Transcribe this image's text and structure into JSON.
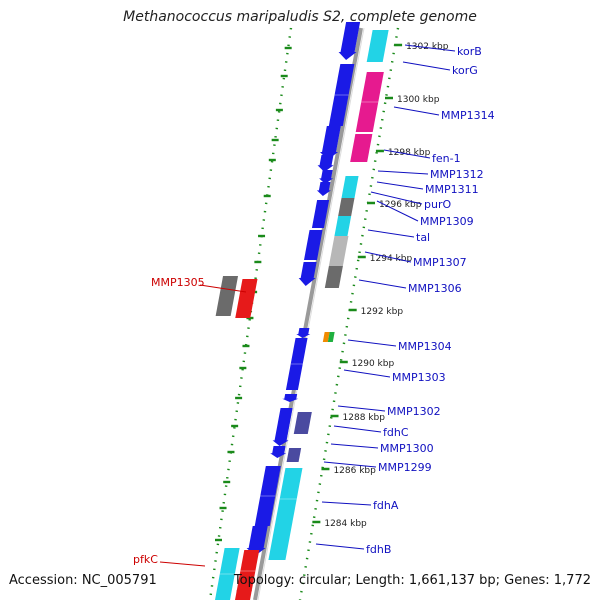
{
  "header": {
    "title": "Methanococcus maripaludis S2, complete genome"
  },
  "footer": {
    "accession": "Accession: NC_005791",
    "summary": "Topology: circular; Length: 1,661,137 bp; Genes: 1,772"
  },
  "colors": {
    "forward_strand": "#1a1ae6",
    "cds_cyan": "#22d3e6",
    "cds_magenta": "#e61a8f",
    "cds_gray": "#6b6b6b",
    "cds_lightgray": "#b7b7b7",
    "cds_navy": "#4a4aa0",
    "cds_red": "#e61a1a",
    "cds_green": "#20b040",
    "cds_orange": "#f08a00",
    "label_blue": "#1010c0",
    "label_red": "#cc0000",
    "tick_green": "#1a8a1a"
  },
  "scale_labels": [
    "1302 kbp",
    "1300 kbp",
    "1298 kbp",
    "1296 kbp",
    "1294 kbp",
    "1292 kbp",
    "1290 kbp",
    "1288 kbp",
    "1286 kbp",
    "1284 kbp"
  ],
  "gene_labels_right": [
    "korB",
    "korG",
    "MMP1314",
    "fen-1",
    "MMP1312",
    "MMP1311",
    "purO",
    "MMP1309",
    "tal",
    "MMP1307",
    "MMP1306",
    "MMP1304",
    "MMP1303",
    "MMP1302",
    "fdhC",
    "MMP1300",
    "MMP1299",
    "fdhA",
    "fdhB"
  ],
  "gene_labels_left": [
    "MMP1305",
    "pfkC"
  ]
}
